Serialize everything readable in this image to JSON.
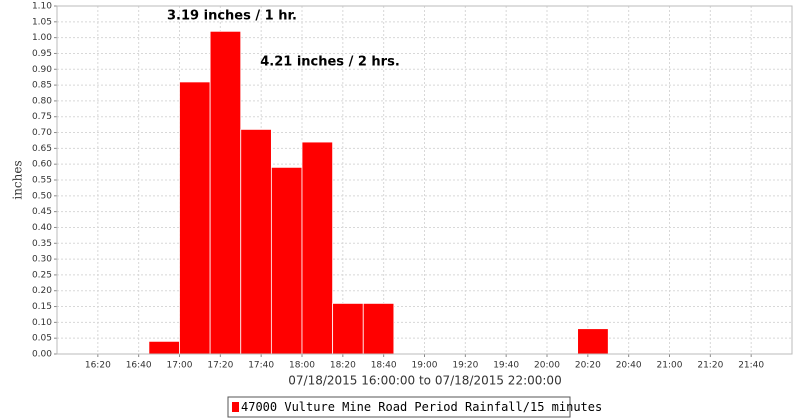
{
  "chart_data": {
    "type": "bar",
    "x_label": "07/18/2015 16:00:00 to 07/18/2015 22:00:00",
    "y_label": "inches",
    "annotations": [
      "3.19 inches / 1 hr.",
      "4.21 inches / 2 hrs."
    ],
    "series": [
      {
        "name": "47000 Vulture Mine Road Period Rainfall/15 minutes",
        "color": "#ff0000",
        "x_start": [
          "16:45",
          "17:00",
          "17:15",
          "17:30",
          "17:45",
          "18:00",
          "18:15",
          "18:30",
          "20:15"
        ],
        "x_end": [
          "17:00",
          "17:15",
          "17:30",
          "17:45",
          "18:00",
          "18:15",
          "18:30",
          "18:45",
          "20:30"
        ],
        "values": [
          0.04,
          0.86,
          1.02,
          0.71,
          0.59,
          0.67,
          0.16,
          0.16,
          0.08
        ]
      }
    ],
    "xlim": [
      "16:00",
      "22:00"
    ],
    "xticks": [
      "16:20",
      "16:40",
      "17:00",
      "17:20",
      "17:40",
      "18:00",
      "18:20",
      "18:40",
      "19:00",
      "19:20",
      "19:40",
      "20:00",
      "20:20",
      "20:40",
      "21:00",
      "21:20",
      "21:40"
    ],
    "ylim": [
      0,
      1.1
    ],
    "yticks": [
      {
        "value": 0,
        "label": "0.00"
      },
      {
        "value": 0.05,
        "label": "0.05"
      },
      {
        "value": 0.1,
        "label": "0.10"
      },
      {
        "value": 0.15,
        "label": "0.15"
      },
      {
        "value": 0.2,
        "label": "0.20"
      },
      {
        "value": 0.25,
        "label": "0.25"
      },
      {
        "value": 0.3,
        "label": "0.30"
      },
      {
        "value": 0.35,
        "label": "0.35"
      },
      {
        "value": 0.4,
        "label": "0.40"
      },
      {
        "value": 0.45,
        "label": "0.45"
      },
      {
        "value": 0.5,
        "label": "0.50"
      },
      {
        "value": 0.55,
        "label": "0.55"
      },
      {
        "value": 0.6,
        "label": "0.60"
      },
      {
        "value": 0.65,
        "label": "0.65"
      },
      {
        "value": 0.7,
        "label": "0.70"
      },
      {
        "value": 0.75,
        "label": "0.75"
      },
      {
        "value": 0.8,
        "label": "0.80"
      },
      {
        "value": 0.85,
        "label": "0.85"
      },
      {
        "value": 0.9,
        "label": "0.90"
      },
      {
        "value": 0.95,
        "label": "0.95"
      },
      {
        "value": 1,
        "label": "1.00"
      },
      {
        "value": 1.05,
        "label": "1.05"
      },
      {
        "value": 1.1,
        "label": "1.10"
      }
    ],
    "grid": true
  }
}
